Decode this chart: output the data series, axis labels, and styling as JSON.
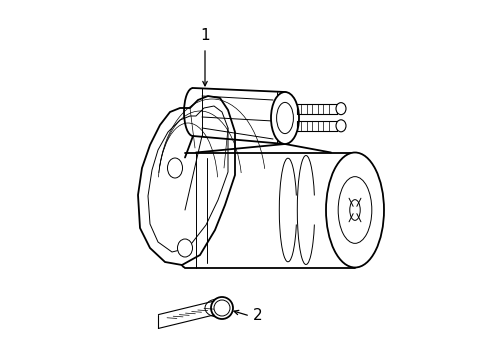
{
  "bg_color": "#ffffff",
  "line_color": "#000000",
  "lw_main": 1.3,
  "lw_thin": 0.7,
  "lw_detail": 0.5,
  "label_1_text": "1",
  "label_2_text": "2",
  "font_size": 11
}
